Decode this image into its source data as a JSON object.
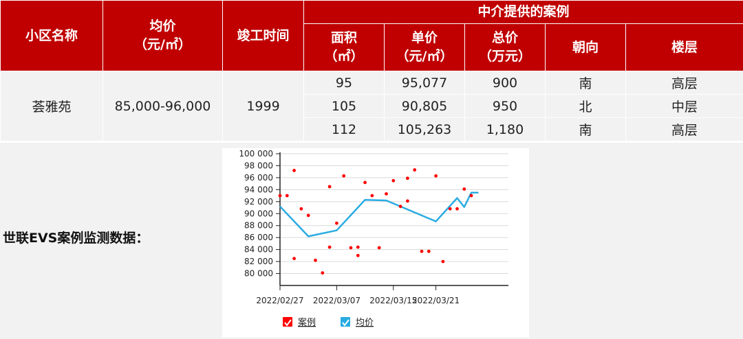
{
  "table": {
    "group_header": "中介提供的案例",
    "col_community": [
      "小区名称"
    ],
    "col_avg_price": [
      "均价",
      "（元/㎡）"
    ],
    "col_completion": [
      "竣工时间"
    ],
    "col_area": [
      "面积",
      "（㎡）"
    ],
    "col_unit_price": [
      "单价",
      "（元/㎡）"
    ],
    "col_total_price": [
      "总价",
      "（万元）"
    ],
    "col_orientation": [
      "朝向"
    ],
    "col_floor": [
      "楼层"
    ],
    "community": "荟雅苑",
    "avg_price": "85,000-96,000",
    "completion": "1999",
    "cases": [
      {
        "area": "95",
        "unit_price": "95,077",
        "total_price": "900",
        "orientation": "南",
        "floor": "高层"
      },
      {
        "area": "105",
        "unit_price": "90,805",
        "total_price": "950",
        "orientation": "北",
        "floor": "中层"
      },
      {
        "area": "112",
        "unit_price": "105,263",
        "total_price": "1,180",
        "orientation": "南",
        "floor": "高层"
      }
    ]
  },
  "evs_label": "世联EVS案例监测数据：",
  "chart_data": {
    "type": "scatter",
    "x_tick_labels": [
      "2022/02/27",
      "2022/03/07",
      "2022/03/15",
      "2022/03/21"
    ],
    "y_tick_labels": [
      "100 000",
      "98 000",
      "96 000",
      "94 000",
      "92 000",
      "90 000",
      "88 000",
      "86 000",
      "84 000",
      "82 000",
      "80 000"
    ],
    "ylim": [
      78000,
      100000
    ],
    "legend": [
      "案例",
      "均价"
    ],
    "series": [
      {
        "name": "案例",
        "mark": "scatter",
        "color": "#ff0000",
        "points": [
          [
            "2022-02-27",
            93000
          ],
          [
            "2022-02-28",
            93000
          ],
          [
            "2022-03-01",
            97200
          ],
          [
            "2022-03-01",
            82500
          ],
          [
            "2022-03-02",
            90800
          ],
          [
            "2022-03-03",
            89700
          ],
          [
            "2022-03-04",
            82200
          ],
          [
            "2022-03-05",
            80100
          ],
          [
            "2022-03-06",
            84400
          ],
          [
            "2022-03-06",
            94500
          ],
          [
            "2022-03-07",
            88400
          ],
          [
            "2022-03-08",
            96300
          ],
          [
            "2022-03-09",
            84300
          ],
          [
            "2022-03-10",
            83000
          ],
          [
            "2022-03-10",
            84400
          ],
          [
            "2022-03-11",
            95200
          ],
          [
            "2022-03-12",
            93000
          ],
          [
            "2022-03-13",
            84300
          ],
          [
            "2022-03-14",
            93300
          ],
          [
            "2022-03-15",
            95500
          ],
          [
            "2022-03-16",
            91200
          ],
          [
            "2022-03-17",
            95900
          ],
          [
            "2022-03-17",
            92100
          ],
          [
            "2022-03-18",
            97300
          ],
          [
            "2022-03-19",
            83700
          ],
          [
            "2022-03-20",
            83700
          ],
          [
            "2022-03-21",
            96300
          ],
          [
            "2022-03-22",
            82000
          ],
          [
            "2022-03-23",
            90800
          ],
          [
            "2022-03-24",
            90800
          ],
          [
            "2022-03-25",
            94100
          ],
          [
            "2022-03-26",
            93000
          ]
        ]
      },
      {
        "name": "均价",
        "mark": "line",
        "color": "#29abe2",
        "points": [
          [
            "2022-02-27",
            91200
          ],
          [
            "2022-03-03",
            86200
          ],
          [
            "2022-03-07",
            87200
          ],
          [
            "2022-03-11",
            92300
          ],
          [
            "2022-03-14",
            92200
          ],
          [
            "2022-03-21",
            88700
          ],
          [
            "2022-03-24",
            92600
          ],
          [
            "2022-03-25",
            91100
          ],
          [
            "2022-03-26",
            93500
          ],
          [
            "2022-03-27",
            93500
          ]
        ]
      }
    ],
    "grid": true
  }
}
